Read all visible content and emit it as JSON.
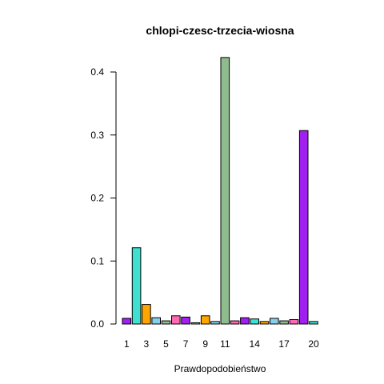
{
  "chart_data": {
    "type": "bar",
    "title": "chlopi-czesc-trzecia-wiosna",
    "xlabel": "Prawdopodobieństwo",
    "ylabel": "",
    "ylim": [
      0,
      0.43
    ],
    "yticks": [
      "0.0",
      "0.1",
      "0.2",
      "0.3",
      "0.4"
    ],
    "ytick_values": [
      0,
      0.1,
      0.2,
      0.3,
      0.4
    ],
    "categories": [
      "1",
      "2",
      "3",
      "4",
      "5",
      "6",
      "7",
      "8",
      "9",
      "10",
      "11",
      "12",
      "13",
      "14",
      "15",
      "16",
      "17",
      "18",
      "19",
      "20"
    ],
    "shown_xtick_labels": [
      "1",
      "3",
      "5",
      "7",
      "9",
      "11",
      "14",
      "17",
      "20"
    ],
    "values": [
      0.009,
      0.121,
      0.031,
      0.01,
      0.005,
      0.013,
      0.011,
      0.002,
      0.013,
      0.004,
      0.423,
      0.005,
      0.01,
      0.008,
      0.004,
      0.009,
      0.005,
      0.007,
      0.307,
      0.004
    ],
    "colors": [
      "#a020f0",
      "#40e0d0",
      "#ffa500",
      "#87ceeb",
      "#8fbc8f",
      "#ff69b4",
      "#a020f0",
      "#40e0d0",
      "#ffa500",
      "#87ceeb",
      "#8fbc8f",
      "#ff69b4",
      "#a020f0",
      "#40e0d0",
      "#ffa500",
      "#87ceeb",
      "#8fbc8f",
      "#ff69b4",
      "#a020f0",
      "#40e0d0"
    ],
    "grid": false,
    "legend": "none"
  }
}
